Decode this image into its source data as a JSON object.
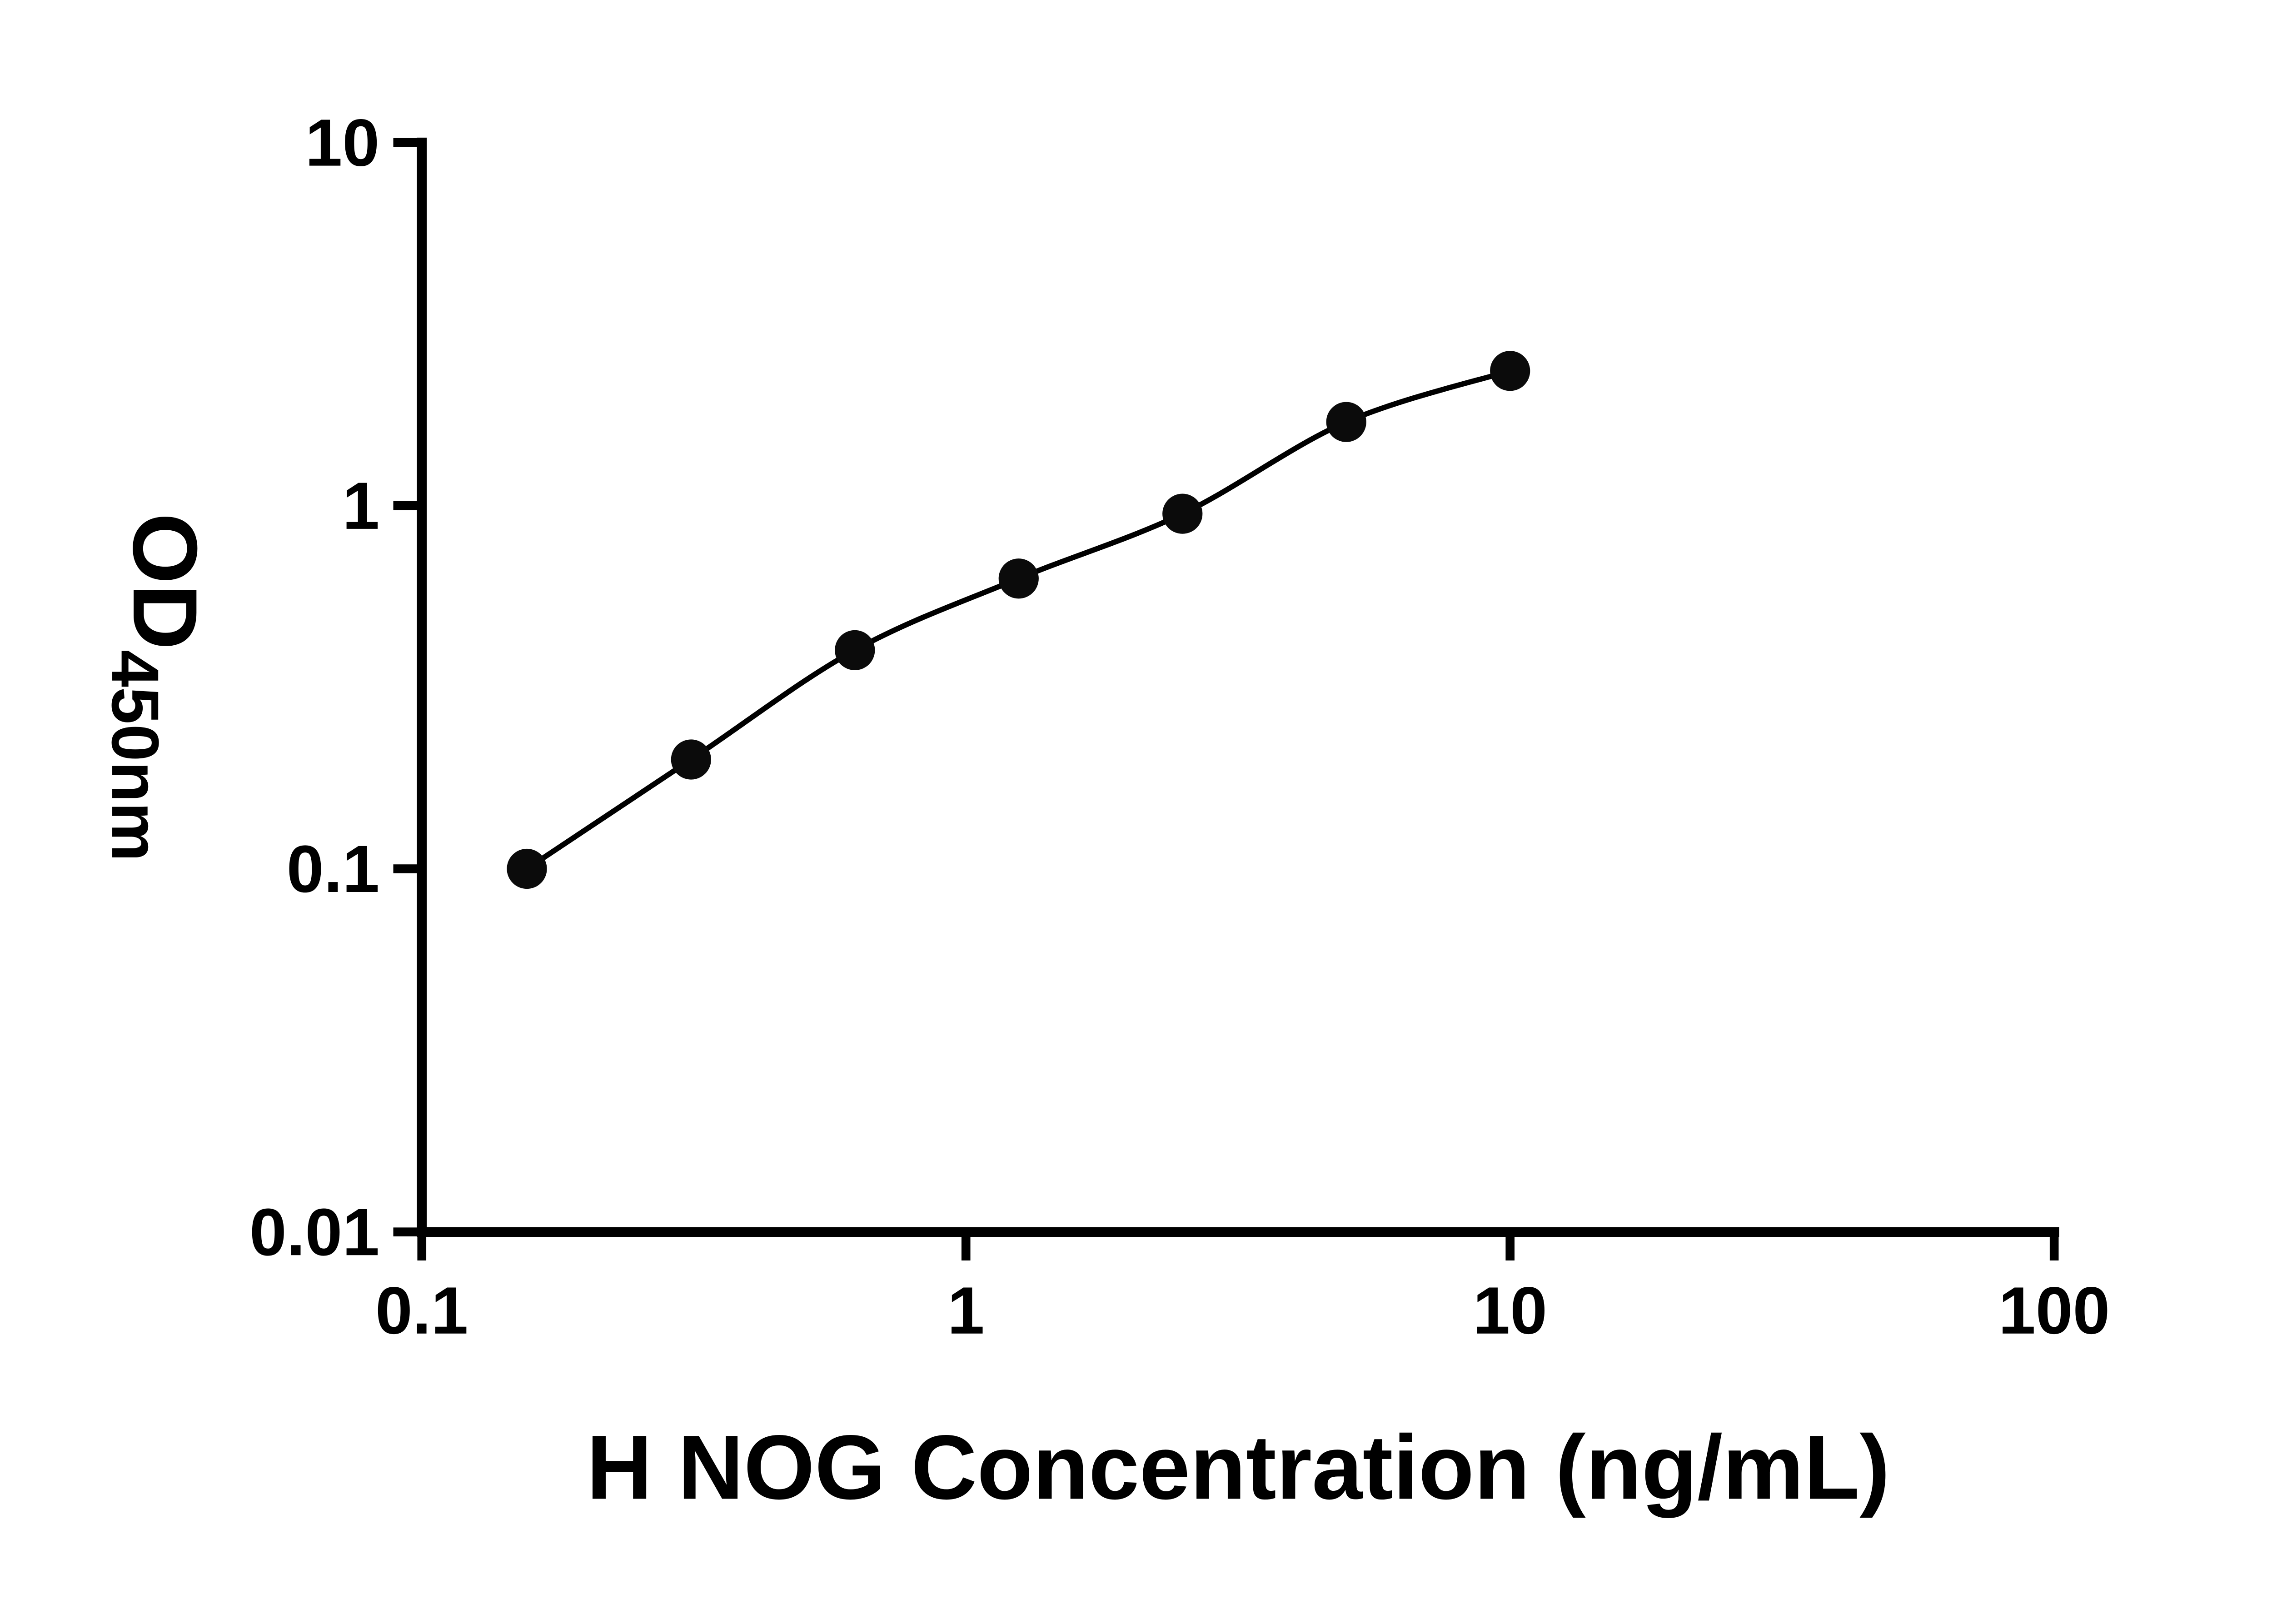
{
  "chart_data": {
    "type": "scatter",
    "subtype": "log-log standard curve with fitted line",
    "x": [
      0.156,
      0.3125,
      0.625,
      1.25,
      2.5,
      5,
      10
    ],
    "y": [
      0.1,
      0.2,
      0.4,
      0.63,
      0.95,
      1.7,
      2.35
    ],
    "xlabel": "H NOG Concentration (ng/mL)",
    "ylabel_main": "OD",
    "ylabel_sub": "450nm",
    "xscale": "log",
    "yscale": "log",
    "xlim": [
      0.1,
      100
    ],
    "ylim": [
      0.01,
      10
    ],
    "x_ticks": [
      0.1,
      1,
      10,
      100
    ],
    "x_tick_labels": [
      "0.1",
      "1",
      "10",
      "100"
    ],
    "y_ticks": [
      0.01,
      0.1,
      1,
      10
    ],
    "y_tick_labels": [
      "0.01",
      "0.1",
      "1",
      "10"
    ],
    "grid": "off",
    "legend": "none",
    "colors": {
      "axis": "#000000",
      "line": "#000000",
      "marker": "#0b0b0b",
      "background": "#ffffff",
      "text": "#000000"
    }
  }
}
